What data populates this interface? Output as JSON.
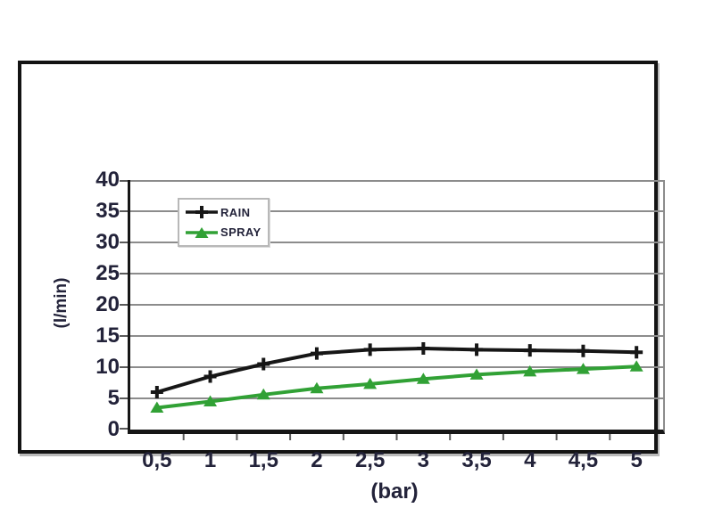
{
  "page": {
    "background": "#ffffff"
  },
  "frame": {
    "border_color": "#131313"
  },
  "legend": {
    "items": [
      {
        "label": "RAIN",
        "color": "#161616",
        "marker": "plus"
      },
      {
        "label": "SPRAY",
        "color": "#31a135",
        "marker": "triangle"
      }
    ]
  },
  "chart_data": {
    "type": "line",
    "title": "",
    "x": [
      0.5,
      1,
      1.5,
      2,
      2.5,
      3,
      3.5,
      4,
      4.5,
      5
    ],
    "xtick_labels": [
      "0,5",
      "1",
      "1,5",
      "2",
      "2,5",
      "3",
      "3,5",
      "4",
      "4,5",
      "5"
    ],
    "ytick_labels": [
      "0",
      "5",
      "10",
      "15",
      "20",
      "25",
      "30",
      "35",
      "40"
    ],
    "ytick_step": 5,
    "ylim": [
      0,
      40
    ],
    "xlabel": "(bar)",
    "ylabel": "(l/min)",
    "grid": true,
    "legend_position": "upper-left-inside",
    "series": [
      {
        "name": "RAIN",
        "color": "#161616",
        "marker": "plus",
        "values": [
          6,
          8.5,
          10.5,
          12.2,
          12.8,
          13,
          12.8,
          12.7,
          12.6,
          12.4
        ]
      },
      {
        "name": "SPRAY",
        "color": "#31a135",
        "marker": "triangle",
        "values": [
          3.5,
          4.5,
          5.6,
          6.6,
          7.3,
          8.1,
          8.8,
          9.3,
          9.7,
          10.1
        ]
      }
    ],
    "colors": {
      "grid": "#8c8c8c",
      "axis": "#161616",
      "tick_text": "#23233a"
    }
  }
}
